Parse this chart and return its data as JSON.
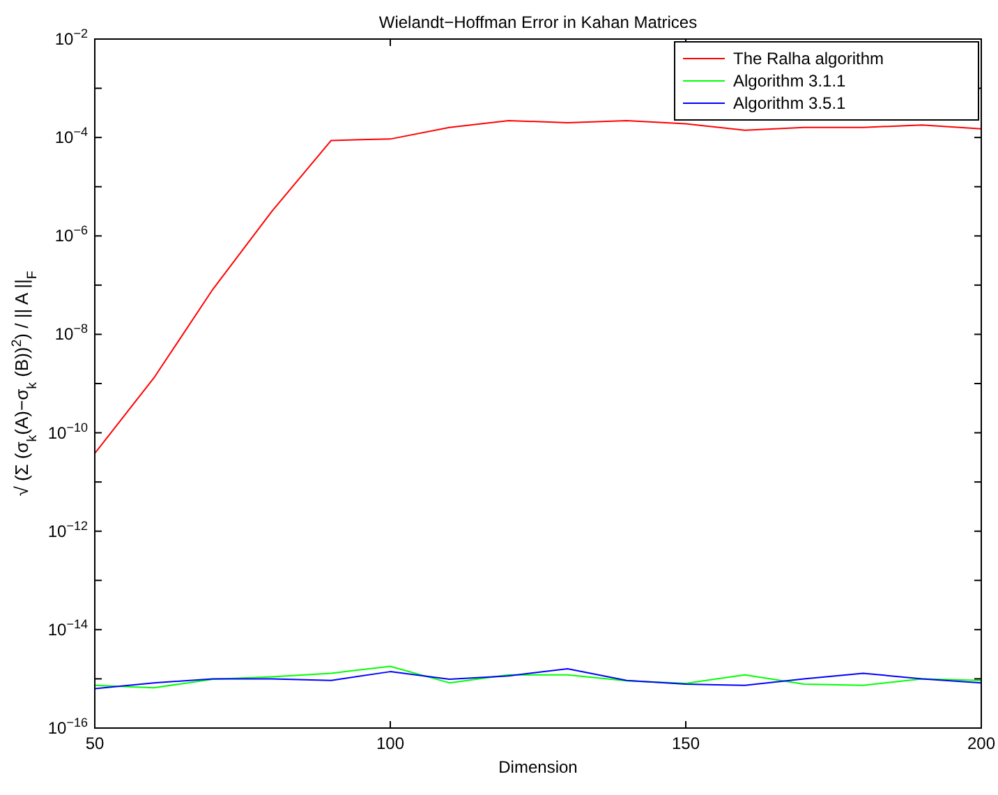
{
  "chart_data": {
    "type": "line",
    "title": "Wielandt−Hoffman Error in Kahan Matrices",
    "xlabel": "Dimension",
    "ylabel": "√ (Σ (σ$_{k}$(A)−σ$_{k}$ (B))$^{2}$) / || A ||$_{F}$",
    "x": [
      50,
      60,
      70,
      80,
      90,
      100,
      110,
      120,
      130,
      140,
      150,
      160,
      170,
      180,
      190,
      200
    ],
    "series": [
      {
        "name": "The Ralha algorithm",
        "color": "#ff0000",
        "values": [
          3.8e-11,
          1.3e-09,
          8.3e-08,
          3.2e-06,
          8.7e-05,
          9.3e-05,
          0.00016,
          0.00022,
          0.0002,
          0.00022,
          0.00019,
          0.00014,
          0.00016,
          0.00016,
          0.00018,
          0.00015
        ]
      },
      {
        "name": "Algorithm 3.1.1",
        "color": "#00ff00",
        "values": [
          7.4e-16,
          6.6e-16,
          9.8e-16,
          1.1e-15,
          1.3e-15,
          1.8e-15,
          8.3e-16,
          1.2e-15,
          1.2e-15,
          9.1e-16,
          8.1e-16,
          1.2e-15,
          7.8e-16,
          7.4e-16,
          1e-15,
          9.3e-16
        ]
      },
      {
        "name": "Algorithm 3.5.1",
        "color": "#0000ff",
        "values": [
          6.3e-16,
          8.3e-16,
          1e-15,
          1e-15,
          9.3e-16,
          1.4e-15,
          9.8e-16,
          1.15e-15,
          1.6e-15,
          9.3e-16,
          7.8e-16,
          7.4e-16,
          1e-15,
          1.3e-15,
          1e-15,
          8.3e-16
        ]
      }
    ],
    "xlim": [
      50,
      200
    ],
    "xticks": [
      50,
      100,
      150,
      200
    ],
    "ylim": [
      1e-16,
      0.01
    ],
    "yticks": [
      {
        "value": 1e-16,
        "label": "10$^{−16}$"
      },
      {
        "value": 1e-15,
        "label": null
      },
      {
        "value": 1e-14,
        "label": "10$^{−14}$"
      },
      {
        "value": 1e-13,
        "label": null
      },
      {
        "value": 1e-12,
        "label": "10$^{−12}$"
      },
      {
        "value": 1e-11,
        "label": null
      },
      {
        "value": 1e-10,
        "label": "10$^{−10}$"
      },
      {
        "value": 1e-09,
        "label": null
      },
      {
        "value": 1e-08,
        "label": "10$^{−8}$"
      },
      {
        "value": 1e-07,
        "label": null
      },
      {
        "value": 1e-06,
        "label": "10$^{−6}$"
      },
      {
        "value": 1e-05,
        "label": null
      },
      {
        "value": 0.0001,
        "label": "10$^{−4}$"
      },
      {
        "value": 0.001,
        "label": null
      },
      {
        "value": 0.01,
        "label": "10$^{−2}$"
      }
    ],
    "log": "y",
    "grid": false,
    "legend": "top right",
    "marker": "none",
    "line_style": "solid"
  }
}
